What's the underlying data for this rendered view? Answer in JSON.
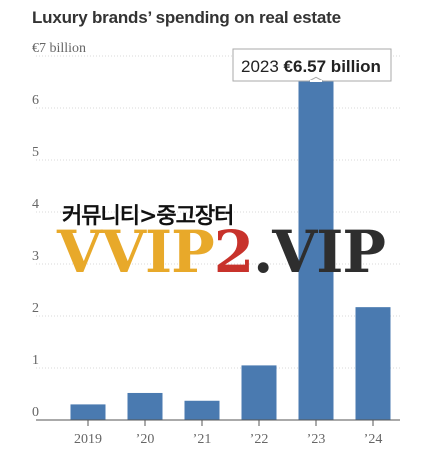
{
  "chart_data": {
    "type": "bar",
    "title": "Luxury brands’ spending on real estate",
    "ylabel": "€7 billion",
    "categories": [
      "2019",
      "’20",
      "’21",
      "’22",
      "’23",
      "’24"
    ],
    "values": [
      0.3,
      0.52,
      0.37,
      1.05,
      6.57,
      2.17
    ],
    "ylim": [
      0,
      7
    ],
    "yticks": [
      {
        "value": 0,
        "label": "0"
      },
      {
        "value": 1,
        "label": "1"
      },
      {
        "value": 2,
        "label": "2"
      },
      {
        "value": 3,
        "label": "3"
      },
      {
        "value": 4,
        "label": "4"
      },
      {
        "value": 5,
        "label": "5"
      },
      {
        "value": 6,
        "label": "6"
      },
      {
        "value": 7,
        "label": "€7 billion"
      }
    ],
    "grid": true,
    "bar_color": "#4A7AB0",
    "annotation": {
      "year": "2023",
      "value": "€6.57 billion",
      "target_index": 4
    }
  },
  "watermark": {
    "line1": "커뮤니티>중고장터",
    "part1": "VVIP",
    "part2": "2",
    "part3": ".VIP"
  }
}
